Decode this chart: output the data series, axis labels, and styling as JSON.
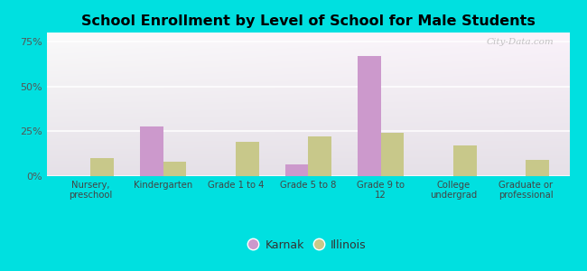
{
  "title": "School Enrollment by Level of School for Male Students",
  "categories": [
    "Nursery,\npreschool",
    "Kindergarten",
    "Grade 1 to 4",
    "Grade 5 to 8",
    "Grade 9 to\n12",
    "College\nundergrad",
    "Graduate or\nprofessional"
  ],
  "karnak_values": [
    0,
    27.5,
    0,
    6.5,
    67.0,
    0,
    0
  ],
  "illinois_values": [
    10.0,
    8.0,
    19.0,
    22.0,
    24.0,
    17.0,
    9.0
  ],
  "karnak_color": "#cc99cc",
  "illinois_color": "#c8c88a",
  "bg_color": "#00e0e0",
  "title_color": "#111111",
  "yticks": [
    0,
    25,
    50,
    75
  ],
  "ylim": [
    0,
    80
  ],
  "bar_width": 0.32,
  "legend_labels": [
    "Karnak",
    "Illinois"
  ],
  "watermark": "City-Data.com"
}
